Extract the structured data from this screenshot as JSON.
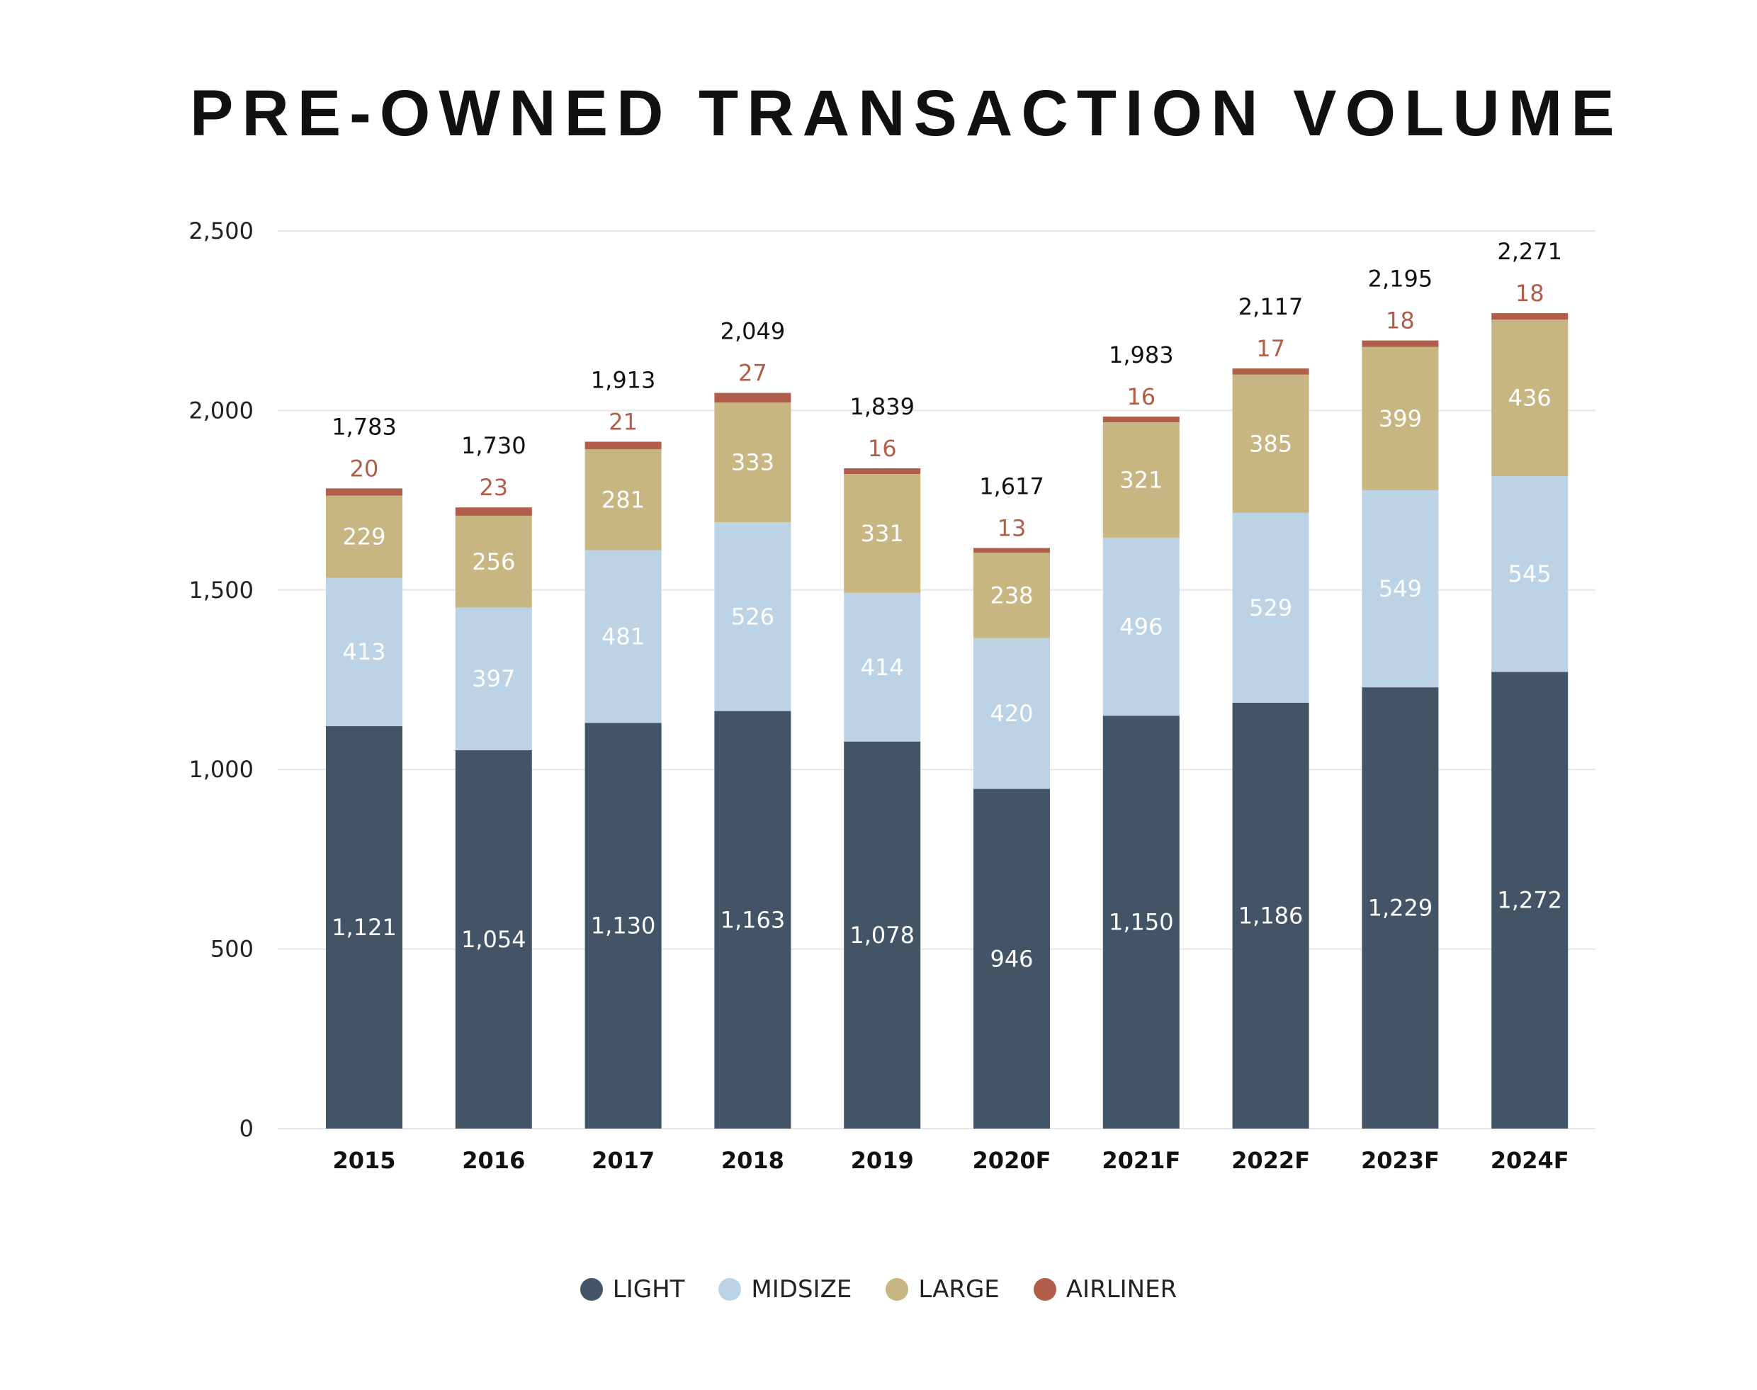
{
  "chart_data": {
    "type": "bar",
    "stacked": true,
    "title": "PRE-OWNED TRANSACTION VOLUME",
    "categories": [
      "2015",
      "2016",
      "2017",
      "2018",
      "2019",
      "2020F",
      "2021F",
      "2022F",
      "2023F",
      "2024F"
    ],
    "series": [
      {
        "name": "LIGHT",
        "color": "#435466",
        "values": [
          1121,
          1054,
          1130,
          1163,
          1078,
          946,
          1150,
          1186,
          1229,
          1272
        ]
      },
      {
        "name": "MIDSIZE",
        "color": "#bcd3e5",
        "values": [
          413,
          397,
          481,
          526,
          414,
          420,
          496,
          529,
          549,
          545
        ]
      },
      {
        "name": "LARGE",
        "color": "#c8b682",
        "values": [
          229,
          256,
          281,
          333,
          331,
          238,
          321,
          385,
          399,
          436
        ]
      },
      {
        "name": "AIRLINER",
        "color": "#b05e4a",
        "values": [
          20,
          23,
          21,
          27,
          16,
          13,
          16,
          17,
          18,
          18
        ]
      }
    ],
    "totals": [
      1783,
      1730,
      1913,
      2049,
      1839,
      1617,
      1983,
      2117,
      2195,
      2271
    ],
    "segment_labels": [
      [
        "1,121",
        "1,054",
        "1,130",
        "1,163",
        "1,078",
        "946",
        "1,150",
        "1,186",
        "1,229",
        "1,272"
      ],
      [
        "413",
        "397",
        "481",
        "526",
        "414",
        "420",
        "496",
        "529",
        "549",
        "545"
      ],
      [
        "229",
        "256",
        "281",
        "333",
        "331",
        "238",
        "321",
        "385",
        "399",
        "436"
      ],
      [
        "20",
        "23",
        "21",
        "27",
        "16",
        "13",
        "16",
        "17",
        "18",
        "18"
      ]
    ],
    "total_labels": [
      "1,783",
      "1,730",
      "1,913",
      "2,049",
      "1,839",
      "1,617",
      "1,983",
      "2,117",
      "2,195",
      "2,271"
    ],
    "ylim": [
      0,
      2500
    ],
    "yticks": [
      0,
      500,
      1000,
      1500,
      2000,
      2500
    ],
    "ytick_labels": [
      "0",
      "500",
      "1,000",
      "1,500",
      "2,000",
      "2,500"
    ],
    "grid": true,
    "legend_position": "bottom-center",
    "xlabel": "",
    "ylabel": ""
  }
}
